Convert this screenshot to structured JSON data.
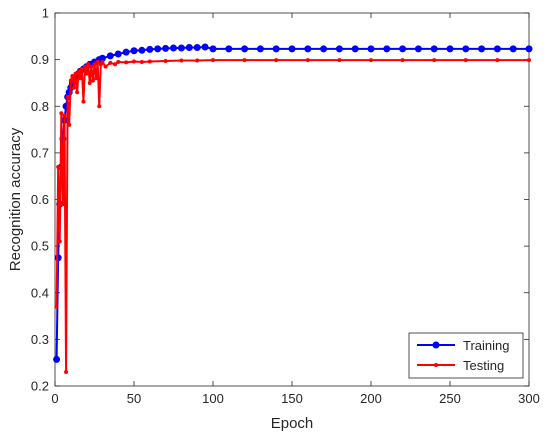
{
  "chart_data": {
    "type": "line",
    "title": "",
    "xlabel": "Epoch",
    "ylabel": "Recognition accuracy",
    "xlim": [
      0,
      300
    ],
    "ylim": [
      0.2,
      1
    ],
    "xticks": [
      0,
      50,
      100,
      150,
      200,
      250,
      300
    ],
    "yticks": [
      0.2,
      0.3,
      0.4,
      0.5,
      0.6,
      0.7,
      0.8,
      0.9,
      1
    ],
    "xtick_labels": [
      "0",
      "50",
      "100",
      "150",
      "200",
      "250",
      "300"
    ],
    "ytick_labels": [
      "0.2",
      "0.3",
      "0.4",
      "0.5",
      "0.6",
      "0.7",
      "0.8",
      "0.9",
      "1"
    ],
    "grid": false,
    "legend": {
      "placement": "bottom-right"
    },
    "series": [
      {
        "name": "Training",
        "color": "#0000ff",
        "marker": "circle",
        "x": [
          1,
          2,
          3,
          4,
          5,
          6,
          7,
          8,
          9,
          10,
          11,
          12,
          13,
          14,
          15,
          16,
          18,
          20,
          22,
          25,
          28,
          30,
          35,
          40,
          45,
          50,
          55,
          60,
          65,
          70,
          75,
          80,
          85,
          90,
          95,
          100,
          110,
          120,
          130,
          140,
          150,
          160,
          170,
          180,
          190,
          200,
          210,
          220,
          230,
          240,
          250,
          260,
          270,
          280,
          290,
          300
        ],
        "values": [
          0.257,
          0.475,
          0.59,
          0.67,
          0.73,
          0.77,
          0.8,
          0.82,
          0.83,
          0.84,
          0.85,
          0.855,
          0.86,
          0.865,
          0.87,
          0.875,
          0.88,
          0.885,
          0.89,
          0.895,
          0.9,
          0.903,
          0.908,
          0.912,
          0.916,
          0.919,
          0.92,
          0.922,
          0.923,
          0.924,
          0.925,
          0.925,
          0.926,
          0.926,
          0.927,
          0.923,
          0.923,
          0.923,
          0.923,
          0.923,
          0.923,
          0.923,
          0.923,
          0.923,
          0.923,
          0.923,
          0.923,
          0.923,
          0.923,
          0.923,
          0.923,
          0.923,
          0.923,
          0.923,
          0.923,
          0.923
        ]
      },
      {
        "name": "Testing",
        "color": "#ff0000",
        "marker": "point",
        "x": [
          1,
          2,
          3,
          4,
          5,
          6,
          7,
          8,
          9,
          10,
          11,
          12,
          13,
          14,
          15,
          16,
          17,
          18,
          19,
          20,
          21,
          22,
          23,
          24,
          25,
          26,
          27,
          28,
          29,
          30,
          32,
          35,
          38,
          40,
          45,
          50,
          55,
          60,
          70,
          80,
          90,
          100,
          120,
          140,
          160,
          180,
          200,
          220,
          240,
          260,
          280,
          300
        ],
        "values": [
          0.37,
          0.67,
          0.51,
          0.785,
          0.59,
          0.78,
          0.23,
          0.82,
          0.76,
          0.855,
          0.865,
          0.84,
          0.87,
          0.83,
          0.875,
          0.86,
          0.88,
          0.81,
          0.885,
          0.87,
          0.89,
          0.85,
          0.885,
          0.855,
          0.89,
          0.86,
          0.895,
          0.8,
          0.89,
          0.895,
          0.885,
          0.893,
          0.89,
          0.895,
          0.894,
          0.896,
          0.895,
          0.896,
          0.897,
          0.898,
          0.898,
          0.899,
          0.899,
          0.899,
          0.899,
          0.899,
          0.899,
          0.899,
          0.899,
          0.899,
          0.899,
          0.899
        ]
      }
    ]
  }
}
